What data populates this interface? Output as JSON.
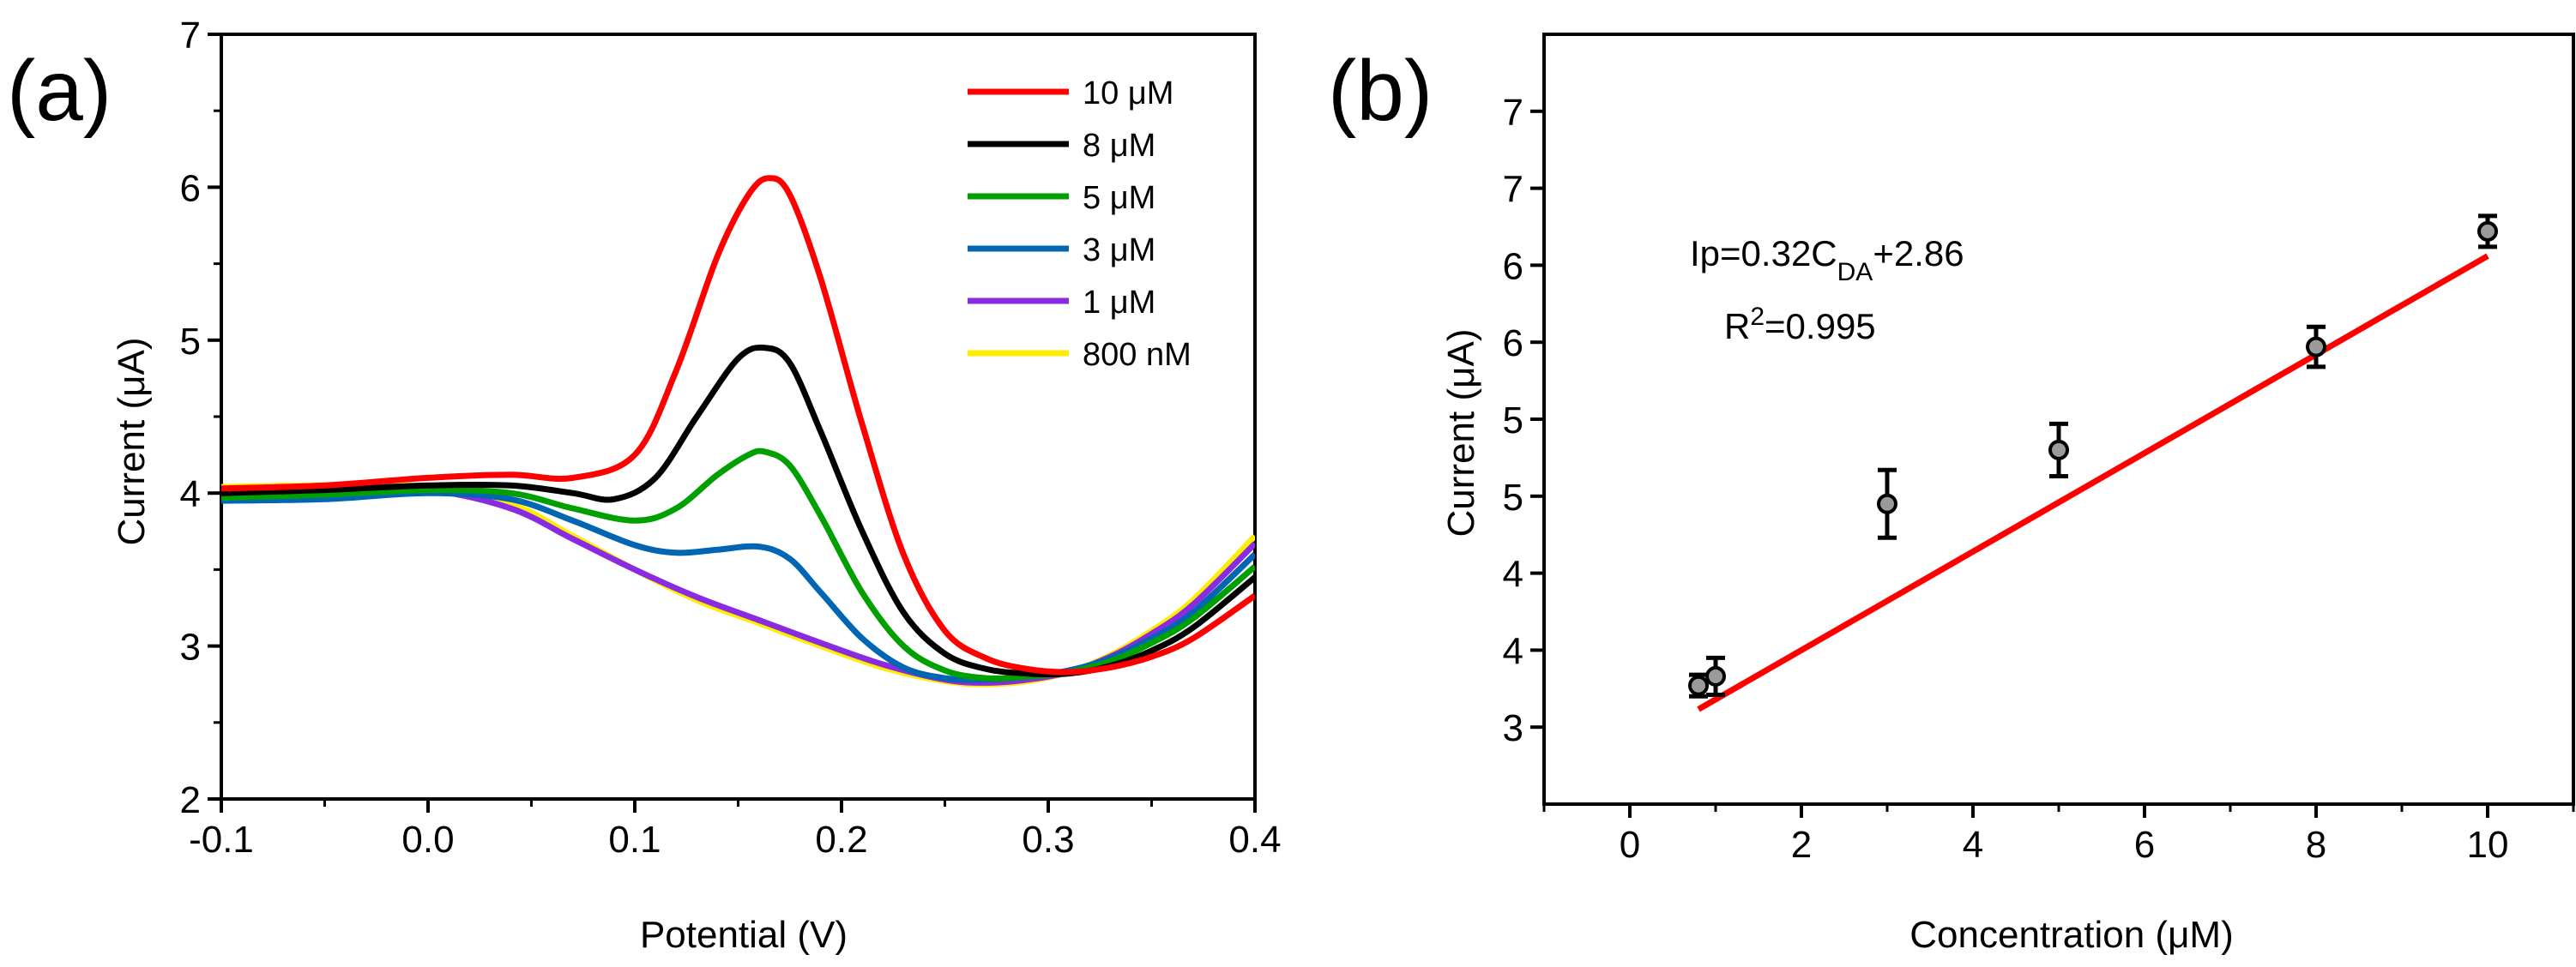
{
  "chart_data": [
    {
      "id": "a",
      "panel_label": "(a)",
      "type": "line",
      "xlabel": "Potential (V)",
      "ylabel": "Current (μA)",
      "xlim": [
        -0.1,
        0.4
      ],
      "ylim": [
        2,
        7
      ],
      "xticks": [
        -0.1,
        0.0,
        0.1,
        0.2,
        0.3,
        0.4
      ],
      "xtick_labels": [
        "-0.1",
        "0.0",
        "0.1",
        "0.2",
        "0.3",
        "0.4"
      ],
      "yticks": [
        2,
        3,
        4,
        5,
        6,
        7
      ],
      "ytick_labels": [
        "2",
        "3",
        "4",
        "5",
        "6",
        "7"
      ],
      "grid": false,
      "legend_position": "top-right",
      "series": [
        {
          "name": "10 μM",
          "color": "#ff0000",
          "x": [
            -0.1,
            -0.05,
            0.0,
            0.04,
            0.07,
            0.1,
            0.12,
            0.14,
            0.155,
            0.165,
            0.175,
            0.19,
            0.21,
            0.23,
            0.25,
            0.27,
            0.29,
            0.31,
            0.33,
            0.35,
            0.37,
            0.4
          ],
          "y": [
            4.03,
            4.05,
            4.1,
            4.12,
            4.1,
            4.25,
            4.8,
            5.55,
            5.95,
            6.06,
            5.95,
            5.4,
            4.45,
            3.6,
            3.1,
            2.92,
            2.85,
            2.83,
            2.86,
            2.93,
            3.05,
            3.33
          ]
        },
        {
          "name": "8 μM",
          "color": "#000000",
          "x": [
            -0.1,
            -0.05,
            0.0,
            0.04,
            0.07,
            0.09,
            0.11,
            0.13,
            0.15,
            0.163,
            0.175,
            0.19,
            0.21,
            0.23,
            0.25,
            0.27,
            0.29,
            0.31,
            0.33,
            0.35,
            0.37,
            0.4
          ],
          "y": [
            4.0,
            4.02,
            4.05,
            4.05,
            4.0,
            3.96,
            4.1,
            4.5,
            4.88,
            4.95,
            4.85,
            4.4,
            3.75,
            3.22,
            2.95,
            2.85,
            2.82,
            2.82,
            2.87,
            2.97,
            3.12,
            3.45
          ]
        },
        {
          "name": "5 μM",
          "color": "#00a000",
          "x": [
            -0.1,
            -0.05,
            0.0,
            0.04,
            0.07,
            0.1,
            0.12,
            0.14,
            0.155,
            0.163,
            0.175,
            0.19,
            0.21,
            0.23,
            0.25,
            0.27,
            0.29,
            0.31,
            0.33,
            0.35,
            0.37,
            0.4
          ],
          "y": [
            3.97,
            3.99,
            4.02,
            4.0,
            3.9,
            3.82,
            3.9,
            4.12,
            4.25,
            4.27,
            4.18,
            3.85,
            3.35,
            3.0,
            2.84,
            2.79,
            2.8,
            2.83,
            2.9,
            3.02,
            3.18,
            3.52
          ]
        },
        {
          "name": "3 μM",
          "color": "#0066b3",
          "x": [
            -0.1,
            -0.05,
            0.0,
            0.04,
            0.07,
            0.1,
            0.12,
            0.14,
            0.16,
            0.175,
            0.19,
            0.21,
            0.23,
            0.25,
            0.27,
            0.29,
            0.31,
            0.33,
            0.35,
            0.37,
            0.4
          ],
          "y": [
            3.95,
            3.96,
            4.0,
            3.96,
            3.82,
            3.66,
            3.61,
            3.63,
            3.65,
            3.57,
            3.35,
            3.05,
            2.86,
            2.79,
            2.78,
            2.8,
            2.84,
            2.92,
            3.05,
            3.22,
            3.6
          ]
        },
        {
          "name": "1 μM",
          "color": "#8a2be2",
          "x": [
            -0.1,
            -0.05,
            0.0,
            0.04,
            0.07,
            0.1,
            0.13,
            0.16,
            0.19,
            0.22,
            0.25,
            0.27,
            0.29,
            0.31,
            0.33,
            0.35,
            0.37,
            0.4
          ],
          "y": [
            4.02,
            4.03,
            4.02,
            3.9,
            3.7,
            3.5,
            3.32,
            3.17,
            3.02,
            2.88,
            2.78,
            2.76,
            2.78,
            2.83,
            2.93,
            3.08,
            3.27,
            3.67
          ]
        },
        {
          "name": "800 nM",
          "color": "#ffee00",
          "x": [
            -0.1,
            -0.05,
            0.0,
            0.04,
            0.07,
            0.1,
            0.13,
            0.16,
            0.19,
            0.22,
            0.25,
            0.27,
            0.29,
            0.31,
            0.33,
            0.35,
            0.37,
            0.4
          ],
          "y": [
            4.04,
            4.05,
            4.04,
            3.93,
            3.72,
            3.5,
            3.3,
            3.15,
            3.0,
            2.86,
            2.77,
            2.75,
            2.77,
            2.83,
            2.94,
            3.1,
            3.3,
            3.72
          ]
        }
      ]
    },
    {
      "id": "b",
      "panel_label": "(b)",
      "type": "scatter",
      "xlabel": "Concentration (μM)",
      "ylabel": "Current (μA)",
      "xlim": [
        -1,
        11
      ],
      "ylim": [
        2.5,
        7.5
      ],
      "xticks": [
        0,
        2,
        4,
        6,
        8,
        10
      ],
      "xtick_labels": [
        "0",
        "2",
        "4",
        "6",
        "8",
        "10"
      ],
      "yticks": [
        3,
        3.5,
        4,
        4.5,
        5,
        5.5,
        6,
        6.5,
        7
      ],
      "ytick_labels": [
        "3",
        "4",
        "4",
        "5",
        "5",
        "6",
        "6",
        "7",
        "7"
      ],
      "grid": false,
      "points": {
        "x": [
          0.8,
          1,
          3,
          5,
          8,
          10
        ],
        "y": [
          3.27,
          3.33,
          4.45,
          4.8,
          5.47,
          6.22
        ],
        "error": [
          0.07,
          0.12,
          0.22,
          0.17,
          0.13,
          0.1
        ],
        "color": "#000000"
      },
      "fit": {
        "slope": 0.32,
        "intercept": 2.86,
        "x_range": [
          0.8,
          10
        ],
        "color": "#ff0000"
      },
      "annotations": {
        "equation_main": "Ip=0.32C",
        "equation_sub": "DA",
        "equation_tail": "+2.86",
        "r2_main": "R",
        "r2_sup": "2",
        "r2_tail": "=0.995"
      }
    }
  ]
}
